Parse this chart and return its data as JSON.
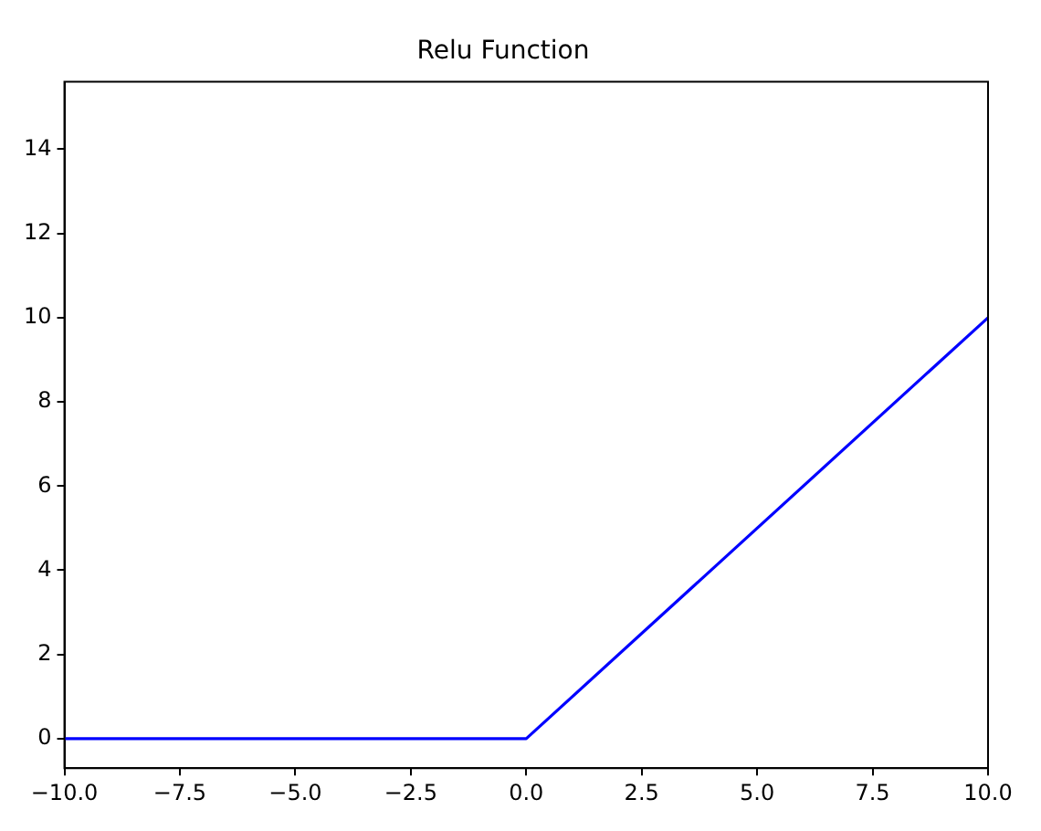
{
  "chart_data": {
    "type": "line",
    "title": "Relu Function",
    "x": [
      -10,
      0,
      10
    ],
    "series": [
      {
        "color": "#0000ff",
        "values": [
          0,
          0,
          10
        ]
      }
    ],
    "xlim": [
      -10,
      10
    ],
    "xticks": [
      {
        "value": -10,
        "label": "−10.0"
      },
      {
        "value": -7.5,
        "label": "−7.5"
      },
      {
        "value": -5,
        "label": "−5.0"
      },
      {
        "value": -2.5,
        "label": "−2.5"
      },
      {
        "value": 0,
        "label": "0.0"
      },
      {
        "value": 2.5,
        "label": "2.5"
      },
      {
        "value": 5,
        "label": "5.0"
      },
      {
        "value": 7.5,
        "label": "7.5"
      },
      {
        "value": 10,
        "label": "10.0"
      }
    ],
    "ylim": [
      -0.7,
      15.6
    ],
    "yticks": [
      0,
      2,
      4,
      6,
      8,
      10,
      12,
      14
    ],
    "grid": false,
    "legend": false,
    "marker": "none",
    "line_style": "solid"
  }
}
